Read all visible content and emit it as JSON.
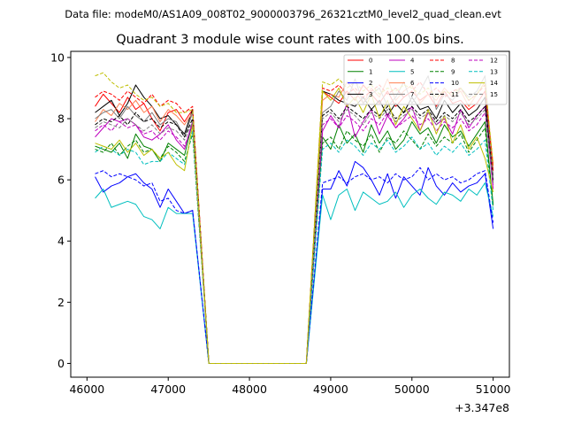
{
  "figure": {
    "suptitle": "Data file: modeM0/AS1A09_008T02_9000003796_26321cztM0_level2_quad_clean.evt"
  },
  "chart_data": {
    "type": "line",
    "title": "Quadrant 3 module wise count rates with 100.0s bins.",
    "xlabel": "",
    "ylabel": "",
    "x_offset_label": "+3.347e8",
    "xlim": [
      45800,
      51200
    ],
    "ylim": [
      -0.45,
      10.2
    ],
    "xticks": [
      46000,
      47000,
      48000,
      49000,
      50000,
      51000
    ],
    "xtick_labels": [
      "46000",
      "47000",
      "48000",
      "49000",
      "50000",
      "51000"
    ],
    "yticks": [
      0,
      2,
      4,
      6,
      8,
      10
    ],
    "ytick_labels": [
      "0",
      "2",
      "4",
      "6",
      "8",
      "10"
    ],
    "grid": false,
    "legend": {
      "location": "top-right",
      "columns": 4
    },
    "x": [
      46100,
      46200,
      46300,
      46400,
      46500,
      46600,
      46700,
      46800,
      46900,
      47000,
      47100,
      47200,
      47300,
      47500,
      47600,
      47700,
      47800,
      47900,
      48000,
      48100,
      48200,
      48300,
      48400,
      48500,
      48600,
      48700,
      48900,
      49000,
      49100,
      49200,
      49300,
      49400,
      49500,
      49600,
      49700,
      49800,
      49900,
      50000,
      50100,
      50200,
      50300,
      50400,
      50500,
      50600,
      50700,
      50800,
      50900,
      51000
    ],
    "series": [
      {
        "name": "0",
        "color": "#ff0000",
        "dash": "solid",
        "values": [
          8.4,
          8.8,
          8.5,
          8.2,
          8.7,
          8.3,
          8.5,
          8.0,
          7.6,
          8.2,
          8.3,
          7.9,
          8.3,
          0,
          0,
          0,
          0,
          0,
          0,
          0,
          0,
          0,
          0,
          0,
          0,
          0,
          8.9,
          8.7,
          8.5,
          8.9,
          8.6,
          9.1,
          8.8,
          8.5,
          8.9,
          8.4,
          8.7,
          8.9,
          8.6,
          8.8,
          8.4,
          8.9,
          8.5,
          8.6,
          8.3,
          8.5,
          8.9,
          6.5
        ]
      },
      {
        "name": "1",
        "color": "#008000",
        "dash": "solid",
        "values": [
          7.1,
          7.0,
          6.9,
          7.2,
          6.7,
          7.5,
          7.1,
          7.0,
          6.6,
          7.2,
          7.0,
          6.8,
          7.9,
          0,
          0,
          0,
          0,
          0,
          0,
          0,
          0,
          0,
          0,
          0,
          0,
          0,
          7.4,
          7.0,
          7.8,
          7.2,
          7.5,
          6.9,
          7.8,
          7.2,
          7.6,
          7.0,
          7.3,
          7.9,
          7.5,
          7.7,
          7.2,
          7.8,
          7.4,
          7.6,
          7.1,
          7.5,
          7.9,
          5.2
        ]
      },
      {
        "name": "2",
        "color": "#0000ff",
        "dash": "solid",
        "values": [
          6.1,
          5.6,
          5.8,
          5.9,
          6.1,
          6.2,
          5.9,
          5.7,
          5.1,
          5.7,
          5.3,
          4.9,
          5.0,
          0,
          0,
          0,
          0,
          0,
          0,
          0,
          0,
          0,
          0,
          0,
          0,
          0,
          5.7,
          5.7,
          6.3,
          5.8,
          6.6,
          6.4,
          6.0,
          5.5,
          6.2,
          5.4,
          6.1,
          5.8,
          5.5,
          6.4,
          5.8,
          5.5,
          5.9,
          5.6,
          5.8,
          5.9,
          6.2,
          4.4
        ]
      },
      {
        "name": "3",
        "color": "#000000",
        "dash": "solid",
        "values": [
          8.2,
          8.4,
          8.6,
          8.1,
          8.5,
          9.1,
          8.7,
          8.4,
          8.0,
          8.1,
          7.8,
          7.5,
          8.3,
          0,
          0,
          0,
          0,
          0,
          0,
          0,
          0,
          0,
          0,
          0,
          0,
          0,
          8.9,
          8.8,
          8.6,
          8.5,
          8.4,
          8.7,
          8.3,
          8.6,
          8.1,
          8.5,
          8.2,
          8.7,
          8.3,
          8.4,
          8.0,
          8.6,
          8.2,
          8.5,
          8.1,
          8.3,
          8.7,
          5.9
        ]
      },
      {
        "name": "4",
        "color": "#bf00bf",
        "dash": "solid",
        "values": [
          7.4,
          7.7,
          8.0,
          7.9,
          8.0,
          7.8,
          7.4,
          7.3,
          7.5,
          7.8,
          7.3,
          7.0,
          7.9,
          0,
          0,
          0,
          0,
          0,
          0,
          0,
          0,
          0,
          0,
          0,
          0,
          0,
          7.6,
          8.1,
          7.7,
          8.5,
          7.4,
          7.9,
          8.3,
          7.5,
          8.1,
          7.7,
          8.0,
          8.4,
          7.6,
          8.2,
          7.8,
          8.0,
          7.5,
          8.3,
          7.7,
          8.1,
          8.4,
          5.7
        ]
      },
      {
        "name": "5",
        "color": "#00bfbf",
        "dash": "solid",
        "values": [
          5.4,
          5.7,
          5.1,
          5.2,
          5.3,
          5.2,
          4.8,
          4.7,
          4.4,
          5.1,
          4.9,
          4.9,
          4.9,
          0,
          0,
          0,
          0,
          0,
          0,
          0,
          0,
          0,
          0,
          0,
          0,
          0,
          5.5,
          4.7,
          5.5,
          5.7,
          5.0,
          5.6,
          5.4,
          5.2,
          5.3,
          5.6,
          5.1,
          5.5,
          5.7,
          5.4,
          5.2,
          5.6,
          5.5,
          5.3,
          5.7,
          5.5,
          5.9,
          4.8
        ]
      },
      {
        "name": "6",
        "color": "#ff7f50",
        "dash": "solid",
        "values": [
          7.9,
          8.3,
          8.1,
          8.5,
          8.3,
          8.6,
          8.2,
          8.4,
          7.9,
          8.3,
          8.1,
          7.8,
          8.2,
          0,
          0,
          0,
          0,
          0,
          0,
          0,
          0,
          0,
          0,
          0,
          0,
          0,
          8.6,
          8.8,
          8.7,
          9.2,
          8.9,
          8.5,
          9.0,
          8.7,
          9.3,
          8.6,
          8.9,
          9.1,
          8.5,
          8.8,
          8.6,
          9.0,
          8.7,
          8.9,
          8.4,
          8.8,
          9.2,
          6.4
        ]
      },
      {
        "name": "7",
        "color": "#7f7f7f",
        "dash": "solid",
        "values": [
          8.0,
          8.2,
          8.3,
          8.0,
          8.4,
          8.1,
          7.9,
          8.2,
          7.8,
          8.0,
          7.9,
          7.4,
          8.2,
          0,
          0,
          0,
          0,
          0,
          0,
          0,
          0,
          0,
          0,
          0,
          0,
          0,
          8.2,
          8.4,
          8.9,
          8.6,
          9.3,
          8.5,
          8.8,
          9.0,
          8.4,
          8.7,
          9.2,
          8.5,
          8.9,
          9.4,
          8.3,
          8.8,
          8.6,
          9.0,
          8.7,
          8.9,
          9.4,
          6.1
        ]
      },
      {
        "name": "8",
        "color": "#ff0000",
        "dash": "dashed",
        "values": [
          8.7,
          8.9,
          8.8,
          8.6,
          8.9,
          8.7,
          8.5,
          8.8,
          8.4,
          8.6,
          8.5,
          8.2,
          8.4,
          0,
          0,
          0,
          0,
          0,
          0,
          0,
          0,
          0,
          0,
          0,
          0,
          0,
          9.0,
          8.9,
          9.1,
          8.8,
          9.0,
          8.7,
          8.9,
          9.1,
          8.8,
          9.0,
          8.7,
          8.9,
          9.2,
          8.8,
          9.0,
          8.7,
          8.9,
          9.0,
          8.6,
          8.8,
          9.1,
          6.3
        ]
      },
      {
        "name": "9",
        "color": "#008000",
        "dash": "dashed",
        "values": [
          7.0,
          6.9,
          7.2,
          6.8,
          7.1,
          7.3,
          6.9,
          7.0,
          6.7,
          7.1,
          6.9,
          6.6,
          7.5,
          0,
          0,
          0,
          0,
          0,
          0,
          0,
          0,
          0,
          0,
          0,
          0,
          0,
          7.2,
          7.4,
          7.0,
          7.6,
          7.3,
          7.1,
          7.5,
          6.9,
          7.4,
          7.2,
          7.6,
          7.3,
          7.0,
          7.5,
          7.1,
          7.4,
          7.2,
          7.5,
          6.9,
          7.3,
          7.7,
          5.1
        ]
      },
      {
        "name": "10",
        "color": "#0000ff",
        "dash": "dashed",
        "values": [
          6.2,
          6.3,
          6.1,
          6.2,
          6.1,
          6.0,
          5.8,
          5.9,
          5.3,
          5.4,
          5.0,
          4.9,
          5.0,
          0,
          0,
          0,
          0,
          0,
          0,
          0,
          0,
          0,
          0,
          0,
          0,
          0,
          5.9,
          6.0,
          6.1,
          5.9,
          6.1,
          6.2,
          6.0,
          6.1,
          5.9,
          6.2,
          6.0,
          6.1,
          6.4,
          6.0,
          6.2,
          6.0,
          6.1,
          5.9,
          6.0,
          6.2,
          6.3,
          4.6
        ]
      },
      {
        "name": "11",
        "color": "#000000",
        "dash": "dashed",
        "values": [
          7.8,
          8.0,
          7.9,
          8.1,
          7.8,
          8.2,
          7.9,
          8.0,
          7.7,
          7.9,
          7.8,
          7.4,
          8.0,
          0,
          0,
          0,
          0,
          0,
          0,
          0,
          0,
          0,
          0,
          0,
          0,
          0,
          8.1,
          8.3,
          8.0,
          8.4,
          8.2,
          8.0,
          8.3,
          8.1,
          8.4,
          8.0,
          8.2,
          8.4,
          8.1,
          8.3,
          7.9,
          8.2,
          8.0,
          8.3,
          7.9,
          8.1,
          8.4,
          6.0
        ]
      },
      {
        "name": "12",
        "color": "#bf00bf",
        "dash": "dashed",
        "values": [
          7.6,
          7.8,
          7.6,
          7.9,
          7.7,
          7.8,
          7.5,
          7.6,
          7.3,
          7.6,
          7.4,
          7.1,
          7.8,
          0,
          0,
          0,
          0,
          0,
          0,
          0,
          0,
          0,
          0,
          0,
          0,
          0,
          7.8,
          8.0,
          7.7,
          8.1,
          7.9,
          7.6,
          8.0,
          7.8,
          8.2,
          7.7,
          7.9,
          8.1,
          7.8,
          8.0,
          7.6,
          7.9,
          7.7,
          8.0,
          7.6,
          7.8,
          8.2,
          5.8
        ]
      },
      {
        "name": "13",
        "color": "#00bfbf",
        "dash": "dashed",
        "values": [
          6.9,
          7.1,
          7.0,
          6.8,
          7.0,
          6.9,
          6.5,
          6.6,
          6.6,
          6.9,
          6.7,
          6.5,
          7.6,
          0,
          0,
          0,
          0,
          0,
          0,
          0,
          0,
          0,
          0,
          0,
          0,
          0,
          7.0,
          7.2,
          6.9,
          7.3,
          7.1,
          6.8,
          7.2,
          7.0,
          7.3,
          6.9,
          7.1,
          7.4,
          7.0,
          7.2,
          6.8,
          7.1,
          6.9,
          7.2,
          6.8,
          7.0,
          7.3,
          5.0
        ]
      },
      {
        "name": "14",
        "color": "#bfbf00",
        "dash": "solid",
        "values": [
          7.2,
          7.1,
          7.0,
          7.3,
          6.9,
          7.2,
          6.8,
          7.0,
          6.7,
          6.9,
          6.5,
          6.3,
          7.8,
          0,
          0,
          0,
          0,
          0,
          0,
          0,
          0,
          0,
          0,
          0,
          0,
          0,
          8.9,
          8.6,
          9.0,
          8.4,
          8.7,
          8.2,
          8.8,
          8.0,
          8.6,
          7.8,
          8.4,
          8.0,
          7.6,
          8.3,
          7.5,
          8.1,
          7.2,
          7.8,
          7.0,
          7.4,
          6.7,
          5.6
        ]
      },
      {
        "name": "15",
        "color": "#7f7f7f",
        "dash": "dashed",
        "values": [
          7.7,
          7.9,
          7.8,
          7.7,
          8.0,
          7.8,
          7.6,
          7.8,
          7.5,
          7.7,
          7.6,
          7.3,
          7.9,
          0,
          0,
          0,
          0,
          0,
          0,
          0,
          0,
          0,
          0,
          0,
          0,
          0,
          8.0,
          8.2,
          7.9,
          8.3,
          8.1,
          7.8,
          8.2,
          8.0,
          8.3,
          7.9,
          8.1,
          8.3,
          8.0,
          8.2,
          7.8,
          8.1,
          7.9,
          8.2,
          7.8,
          8.0,
          8.3,
          5.9
        ]
      },
      {
        "name": "",
        "color": "#bfbf00",
        "dash": "dashed",
        "values": [
          9.4,
          9.5,
          9.2,
          9.0,
          9.1,
          8.8,
          8.6,
          8.7,
          8.4,
          8.5,
          8.2,
          8.2,
          8.3,
          0,
          0,
          0,
          0,
          0,
          0,
          0,
          0,
          0,
          0,
          0,
          0,
          0,
          9.2,
          9.1,
          9.3,
          9.0,
          9.2,
          8.9,
          9.1,
          8.8,
          9.0,
          8.9,
          9.1,
          9.0,
          8.8,
          9.0,
          8.7,
          8.9,
          8.8,
          9.0,
          8.6,
          8.8,
          9.2,
          6.5
        ]
      }
    ]
  }
}
